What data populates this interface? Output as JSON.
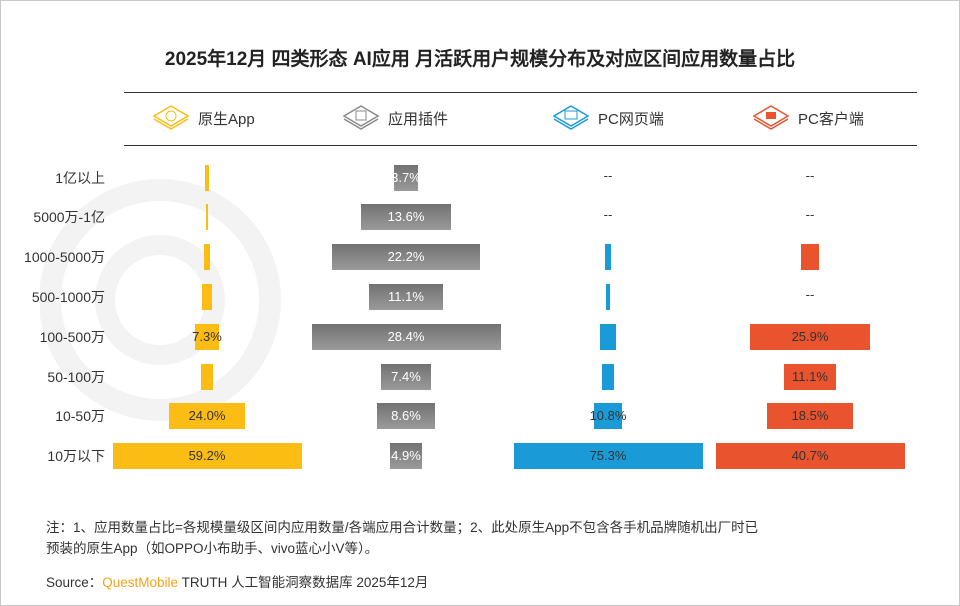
{
  "title": "2025年12月 四类形态 AI应用 月活跃用户规模分布及对应区间应用数量占比",
  "legend": [
    {
      "label": "原生App",
      "icon": "app-icon",
      "color": "#fbbd13"
    },
    {
      "label": "应用插件",
      "icon": "ai-plugin-icon",
      "color": "#8a8a8a"
    },
    {
      "label": "PC网页端",
      "icon": "monitor-icon",
      "color": "#1a9bd7"
    },
    {
      "label": "PC客户端",
      "icon": "pc-client-icon",
      "color": "#e9532e"
    }
  ],
  "chart_data": {
    "type": "bar",
    "subtype": "centered-horizontal-bars (one panel per series, each scaled to its own maximum)",
    "categories": [
      "1亿以上",
      "5000万-1亿",
      "1000-5000万",
      "500-1000万",
      "100-500万",
      "50-100万",
      "10-50万",
      "10万以下"
    ],
    "unit": "%",
    "series": [
      {
        "name": "原生App",
        "color": "#fbbd13",
        "values": [
          1.0,
          0.4,
          1.6,
          2.9,
          7.3,
          3.6,
          24.0,
          59.2
        ],
        "labels": [
          "",
          "",
          "",
          "",
          "7.3%",
          "",
          "24.0%",
          "59.2%"
        ]
      },
      {
        "name": "应用插件",
        "color": "#8a8a8a",
        "values": [
          3.7,
          13.6,
          22.2,
          11.1,
          28.4,
          7.4,
          8.6,
          4.9
        ],
        "labels": [
          "3.7%",
          "13.6%",
          "22.2%",
          "11.1%",
          "28.4%",
          "7.4%",
          "8.6%",
          "4.9%"
        ]
      },
      {
        "name": "PC网页端",
        "color": "#1a9bd7",
        "values": [
          null,
          null,
          2.1,
          1.3,
          6.1,
          4.4,
          10.8,
          75.3
        ],
        "labels": [
          "--",
          "--",
          "",
          "",
          "",
          "",
          "10.8%",
          "75.3%"
        ]
      },
      {
        "name": "PC客户端",
        "color": "#e9532e",
        "values": [
          null,
          null,
          3.8,
          null,
          25.9,
          11.1,
          18.5,
          40.7
        ],
        "labels": [
          "--",
          "--",
          "",
          "--",
          "25.9%",
          "11.1%",
          "18.5%",
          "40.7%"
        ]
      }
    ],
    "grid": false,
    "legend_position": "top"
  },
  "footnote": {
    "line1": "注：1、应用数量占比=各规模量级区间内应用数量/各端应用合计数量；2、此处原生App不包含各手机品牌随机出厂时已",
    "line2": "预装的原生App（如OPPO小布助手、vivo蓝心小V等）。",
    "source_prefix": "Source：",
    "source_brand": "QuestMobile",
    "source_rest": " TRUTH 人工智能洞察数据库 2025年12月"
  },
  "watermark": "QUEST MOBILE"
}
